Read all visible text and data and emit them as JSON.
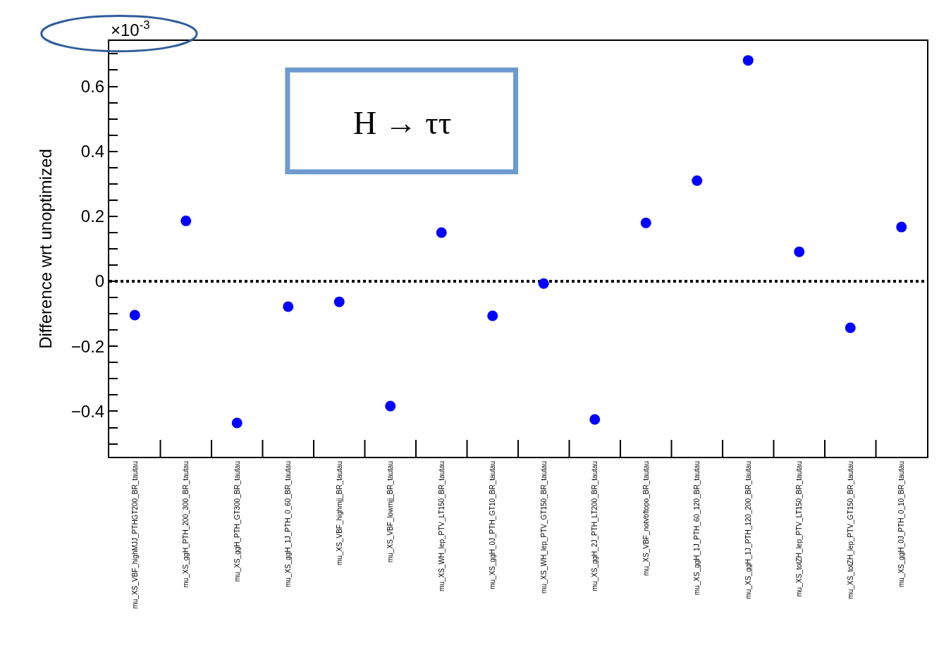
{
  "chart_data": {
    "type": "scatter",
    "ylabel": "Difference wrt unoptimized",
    "categories": [
      "mu_XS_VBF_highMJJ_PTHGT200_BR_tautau",
      "mu_XS_ggH_PTH_200_300_BR_tautau",
      "mu_XS_ggH_PTH_GT300_BR_tautau",
      "mu_XS_ggH_1J_PTH_0_60_BR_tautau",
      "mu_XS_VBF_highmjj_BR_tautau",
      "mu_XS_VBF_lowmjj_BR_tautau",
      "mu_XS_WH_lep_PTV_LT150_BR_tautau",
      "mu_XS_ggH_0J_PTH_GT10_BR_tautau",
      "mu_XS_WH_lep_PTV_GT150_BR_tautau",
      "mu_XS_ggH_2J_PTH_LT200_BR_tautau",
      "mu_XS_VBF_notvbftopo_BR_tautau",
      "mu_XS_ggH_1J_PTH_60_120_BR_tautau",
      "mu_XS_ggH_1J_PTH_120_200_BR_tautau",
      "mu_XS_totZH_lep_PTV_LT150_BR_tautau",
      "mu_XS_totZH_lep_PTV_GT150_BR_tautau",
      "mu_XS_ggH_0J_PTH_0_10_BR_tautau"
    ],
    "values": [
      -0.104,
      0.186,
      -0.436,
      -0.078,
      -0.063,
      -0.384,
      0.15,
      -0.106,
      -0.007,
      -0.425,
      0.18,
      0.31,
      0.68,
      0.091,
      -0.143,
      0.167
    ],
    "color": "#0000ff",
    "marker": "circle",
    "ylim": [
      -0.54,
      0.74
    ],
    "yticks": [
      {
        "value": -0.5,
        "label": null
      },
      {
        "value": -0.45,
        "label": null
      },
      {
        "value": -0.4,
        "label": "−0.4"
      },
      {
        "value": -0.35,
        "label": null
      },
      {
        "value": -0.3,
        "label": null
      },
      {
        "value": -0.25,
        "label": null
      },
      {
        "value": -0.2,
        "label": "−0.2"
      },
      {
        "value": -0.15,
        "label": null
      },
      {
        "value": -0.1,
        "label": null
      },
      {
        "value": -0.05,
        "label": null
      },
      0,
      {
        "value": 0.05,
        "label": null
      },
      {
        "value": 0.1,
        "label": null
      },
      {
        "value": 0.15,
        "label": null
      },
      {
        "value": 0.2,
        "label": "0.2"
      },
      {
        "value": 0.25,
        "label": null
      },
      {
        "value": 0.3,
        "label": null
      },
      {
        "value": 0.35,
        "label": null
      },
      {
        "value": 0.4,
        "label": "0.4"
      },
      {
        "value": 0.45,
        "label": null
      },
      {
        "value": 0.5,
        "label": null
      },
      {
        "value": 0.55,
        "label": null
      },
      {
        "value": 0.6,
        "label": "0.6"
      },
      {
        "value": 0.65,
        "label": null
      },
      {
        "value": 0.7,
        "label": null
      }
    ],
    "ref_lines": [
      {
        "axis": "y",
        "value": 0,
        "label": null,
        "color": "#000000",
        "line_style": "dotted"
      }
    ],
    "annotations": [
      "×10$^{-3}$",
      "H → ττ"
    ]
  }
}
